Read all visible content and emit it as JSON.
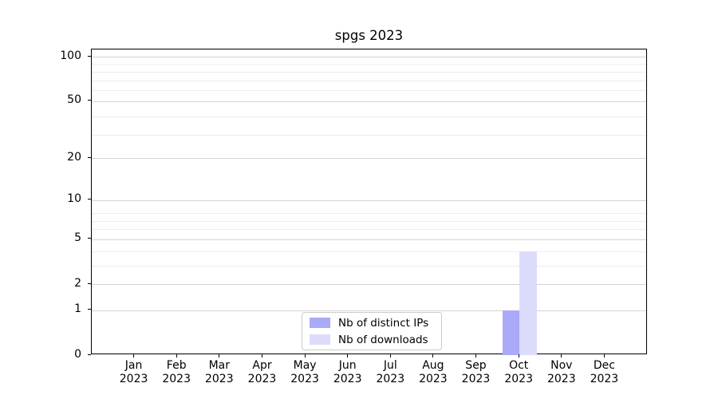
{
  "chart_data": {
    "type": "bar",
    "title": "spgs 2023",
    "categories": [
      "Jan",
      "Feb",
      "Mar",
      "Apr",
      "May",
      "Jun",
      "Jul",
      "Aug",
      "Sep",
      "Oct",
      "Nov",
      "Dec"
    ],
    "x_year_label": "2023",
    "series": [
      {
        "name": "Nb of distinct IPs",
        "color": "#aaaaf8",
        "values": [
          0,
          0,
          0,
          0,
          0,
          0,
          0,
          0,
          0,
          1,
          0,
          0
        ]
      },
      {
        "name": "Nb of downloads",
        "color": "#dcdcfa",
        "values": [
          0,
          0,
          0,
          0,
          0,
          0,
          0,
          0,
          0,
          4,
          0,
          0
        ]
      }
    ],
    "y_scale": "log10(1+v)",
    "y_ticks": [
      0,
      1,
      2,
      5,
      10,
      20,
      50,
      100
    ],
    "y_minor_gridlines": [
      3,
      4,
      6,
      7,
      8,
      29,
      39,
      59,
      69,
      79,
      89
    ],
    "ylim": [
      0,
      112
    ],
    "xlabel": "",
    "ylabel": "",
    "grid": true,
    "legend_position": "lower center"
  },
  "colors": {
    "background": "#ffffff",
    "spine": "#000000",
    "text": "#000000",
    "grid_major": "#d4d4d4",
    "grid_minor": "#ededed",
    "legend_border": "#cccccc"
  }
}
